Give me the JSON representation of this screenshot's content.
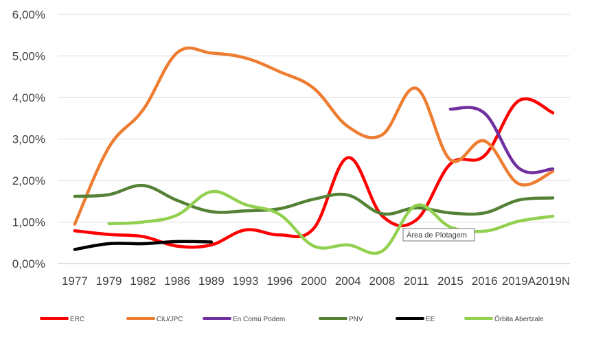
{
  "chart_data": {
    "type": "line",
    "categories": [
      "1977",
      "1979",
      "1982",
      "1986",
      "1989",
      "1993",
      "1996",
      "2000",
      "2004",
      "2008",
      "2011",
      "2015",
      "2016",
      "2019A",
      "2019N"
    ],
    "ylim": [
      0,
      6
    ],
    "yticks": [
      "0,00%",
      "1,00%",
      "2,00%",
      "3,00%",
      "4,00%",
      "5,00%",
      "6,00%"
    ],
    "grid": true,
    "legend_position": "bottom",
    "smooth": true,
    "series": [
      {
        "name": "ERC",
        "color": "#ff0000",
        "values": [
          0.79,
          0.7,
          0.65,
          0.42,
          0.45,
          0.81,
          0.69,
          0.85,
          2.55,
          1.15,
          1.05,
          2.4,
          2.6,
          3.92,
          3.63
        ]
      },
      {
        "name": "CiU/JPC",
        "color": "#ed7d31",
        "values": [
          0.95,
          2.8,
          3.7,
          5.08,
          5.07,
          4.95,
          4.62,
          4.22,
          3.3,
          3.1,
          4.22,
          2.5,
          2.95,
          1.92,
          2.22
        ]
      },
      {
        "name": "En Comú Podem",
        "color": "#7030a0",
        "values": [
          null,
          null,
          null,
          null,
          null,
          null,
          null,
          null,
          null,
          null,
          null,
          3.72,
          3.62,
          2.3,
          2.28
        ]
      },
      {
        "name": "PNV",
        "color": "#548235",
        "values": [
          1.62,
          1.66,
          1.88,
          1.52,
          1.25,
          1.27,
          1.32,
          1.55,
          1.65,
          1.2,
          1.34,
          1.22,
          1.22,
          1.53,
          1.58
        ]
      },
      {
        "name": "EE",
        "color": "#000000",
        "values": [
          0.34,
          0.48,
          0.48,
          0.53,
          0.52,
          null,
          null,
          null,
          null,
          null,
          null,
          null,
          null,
          null,
          null
        ]
      },
      {
        "name": "Órbita Abertzale",
        "color": "#92d050",
        "values": [
          null,
          0.96,
          1.0,
          1.17,
          1.73,
          1.42,
          1.18,
          0.42,
          0.45,
          0.3,
          1.4,
          0.88,
          0.78,
          1.02,
          1.14
        ]
      }
    ],
    "annotation": "Área de Plotagem"
  }
}
